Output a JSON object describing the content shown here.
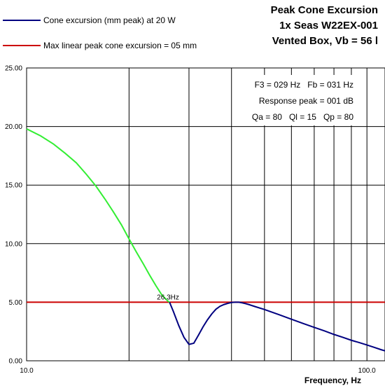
{
  "chart_data": {
    "type": "line",
    "title_lines": [
      "Peak Cone Excursion",
      "1x Seas W22EX-001",
      "Vented Box, Vb = 56 l"
    ],
    "xlabel": "Frequency, Hz",
    "ylabel": "",
    "x_scale": "log",
    "xlim": [
      10,
      113
    ],
    "ylim": [
      0,
      25
    ],
    "yticks": [
      "0.00",
      "5.00",
      "10.00",
      "15.00",
      "20.00",
      "25.00"
    ],
    "xticks": [
      "10.0",
      "100.0"
    ],
    "x_minor_gridlines": [
      20,
      30,
      40,
      50,
      60,
      70,
      80,
      90
    ],
    "grid": true,
    "legend_position": "top-left",
    "legend": [
      {
        "label": "Cone excursion (mm peak) at 20 W",
        "color": "#000080"
      },
      {
        "label": "Max linear peak cone excursion = 05 mm",
        "color": "#cc0000"
      }
    ],
    "info": [
      "F3 = 029 Hz   Fb = 031 Hz",
      "Response peak = 001 dB",
      "Qa = 80   Ql = 15   Qp = 80"
    ],
    "annotation": {
      "text": "26.3Hz",
      "x": 26.3,
      "y": 5.0
    },
    "series": [
      {
        "name": "Cone excursion (mm peak) at 20 W",
        "color_above_limit": "#33ee33",
        "color_below_limit": "#000080",
        "x": [
          10,
          11,
          12,
          13,
          14,
          15,
          16,
          17,
          18,
          19,
          20,
          21,
          22,
          23,
          24,
          25,
          26,
          26.3,
          27,
          28,
          29,
          30,
          31,
          32,
          33,
          34,
          35,
          36,
          37,
          38,
          39,
          40,
          41,
          42,
          43,
          44,
          45,
          47,
          50,
          55,
          60,
          65,
          70,
          75,
          80,
          85,
          90,
          95,
          100,
          105,
          110,
          113
        ],
        "y": [
          19.8,
          19.2,
          18.5,
          17.7,
          16.9,
          15.9,
          14.9,
          13.8,
          12.7,
          11.6,
          10.4,
          9.3,
          8.3,
          7.3,
          6.4,
          5.6,
          5.1,
          5.0,
          4.2,
          3.0,
          2.0,
          1.4,
          1.5,
          2.2,
          2.9,
          3.5,
          4.0,
          4.4,
          4.65,
          4.8,
          4.9,
          4.98,
          5.0,
          5.0,
          4.95,
          4.88,
          4.8,
          4.62,
          4.38,
          3.95,
          3.55,
          3.18,
          2.85,
          2.55,
          2.25,
          2.0,
          1.75,
          1.55,
          1.35,
          1.15,
          0.95,
          0.85
        ]
      },
      {
        "name": "Max linear peak cone excursion = 05 mm",
        "color": "#cc0000",
        "x": [
          10,
          113
        ],
        "y": [
          5,
          5
        ]
      }
    ]
  }
}
